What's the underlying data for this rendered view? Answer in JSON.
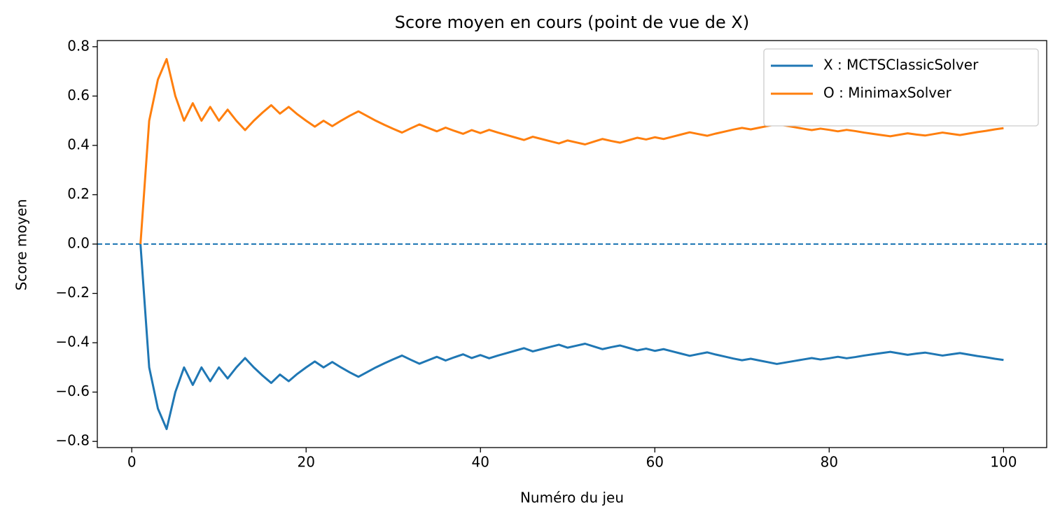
{
  "chart_data": {
    "type": "line",
    "title": "Score moyen en cours (point de vue de X)",
    "xlabel": "Numéro du jeu",
    "ylabel": "Score moyen",
    "x": [
      1,
      2,
      3,
      4,
      5,
      6,
      7,
      8,
      9,
      10,
      11,
      12,
      13,
      14,
      15,
      16,
      17,
      18,
      19,
      20,
      21,
      22,
      23,
      24,
      25,
      26,
      27,
      28,
      29,
      30,
      31,
      32,
      33,
      34,
      35,
      36,
      37,
      38,
      39,
      40,
      41,
      42,
      43,
      44,
      45,
      46,
      47,
      48,
      49,
      50,
      51,
      52,
      53,
      54,
      55,
      56,
      57,
      58,
      59,
      60,
      61,
      62,
      63,
      64,
      65,
      66,
      67,
      68,
      69,
      70,
      71,
      72,
      73,
      74,
      75,
      76,
      77,
      78,
      79,
      80,
      81,
      82,
      83,
      84,
      85,
      86,
      87,
      88,
      89,
      90,
      91,
      92,
      93,
      94,
      95,
      96,
      97,
      98,
      99,
      100
    ],
    "series": [
      {
        "name": "X : MCTSClassicSolver",
        "color": "#1f77b4",
        "values": [
          0,
          -0.5,
          -0.667,
          -0.75,
          -0.6,
          -0.5,
          -0.571,
          -0.5,
          -0.556,
          -0.5,
          -0.545,
          -0.5,
          -0.462,
          -0.5,
          -0.533,
          -0.563,
          -0.529,
          -0.556,
          -0.526,
          -0.5,
          -0.476,
          -0.5,
          -0.478,
          -0.5,
          -0.52,
          -0.538,
          -0.519,
          -0.5,
          -0.483,
          -0.467,
          -0.452,
          -0.469,
          -0.485,
          -0.471,
          -0.457,
          -0.472,
          -0.459,
          -0.447,
          -0.462,
          -0.45,
          -0.463,
          -0.452,
          -0.442,
          -0.432,
          -0.422,
          -0.435,
          -0.426,
          -0.417,
          -0.408,
          -0.42,
          -0.412,
          -0.404,
          -0.415,
          -0.426,
          -0.418,
          -0.411,
          -0.421,
          -0.431,
          -0.424,
          -0.433,
          -0.426,
          -0.435,
          -0.444,
          -0.453,
          -0.446,
          -0.439,
          -0.448,
          -0.456,
          -0.464,
          -0.471,
          -0.465,
          -0.472,
          -0.479,
          -0.486,
          -0.48,
          -0.474,
          -0.468,
          -0.462,
          -0.468,
          -0.463,
          -0.457,
          -0.463,
          -0.458,
          -0.452,
          -0.447,
          -0.442,
          -0.437,
          -0.443,
          -0.449,
          -0.444,
          -0.44,
          -0.446,
          -0.452,
          -0.447,
          -0.442,
          -0.448,
          -0.454,
          -0.459,
          -0.465,
          -0.47
        ]
      },
      {
        "name": "O : MinimaxSolver",
        "color": "#ff7f0e",
        "values": [
          0,
          0.5,
          0.667,
          0.75,
          0.6,
          0.5,
          0.571,
          0.5,
          0.556,
          0.5,
          0.545,
          0.5,
          0.462,
          0.5,
          0.533,
          0.563,
          0.529,
          0.556,
          0.526,
          0.5,
          0.476,
          0.5,
          0.478,
          0.5,
          0.52,
          0.538,
          0.519,
          0.5,
          0.483,
          0.467,
          0.452,
          0.469,
          0.485,
          0.471,
          0.457,
          0.472,
          0.459,
          0.447,
          0.462,
          0.45,
          0.463,
          0.452,
          0.442,
          0.432,
          0.422,
          0.435,
          0.426,
          0.417,
          0.408,
          0.42,
          0.412,
          0.404,
          0.415,
          0.426,
          0.418,
          0.411,
          0.421,
          0.431,
          0.424,
          0.433,
          0.426,
          0.435,
          0.444,
          0.453,
          0.446,
          0.439,
          0.448,
          0.456,
          0.464,
          0.471,
          0.465,
          0.472,
          0.479,
          0.486,
          0.48,
          0.474,
          0.468,
          0.462,
          0.468,
          0.463,
          0.457,
          0.463,
          0.458,
          0.452,
          0.447,
          0.442,
          0.437,
          0.443,
          0.449,
          0.444,
          0.44,
          0.446,
          0.452,
          0.447,
          0.442,
          0.448,
          0.454,
          0.459,
          0.465,
          0.47
        ]
      }
    ],
    "hline": 0,
    "hline_color": "#1f77b4",
    "xlim": [
      -3.95,
      104.95
    ],
    "ylim": [
      -0.825,
      0.825
    ],
    "xticks": [
      0,
      20,
      40,
      60,
      80,
      100
    ],
    "yticks": [
      {
        "value": -0.8,
        "label": "−0.8"
      },
      {
        "value": -0.6,
        "label": "−0.6"
      },
      {
        "value": -0.4,
        "label": "−0.4"
      },
      {
        "value": -0.2,
        "label": "−0.2"
      },
      {
        "value": 0,
        "label": "0.0"
      },
      0.2,
      0.4,
      0.6,
      0.8
    ],
    "legend": "upper right"
  }
}
